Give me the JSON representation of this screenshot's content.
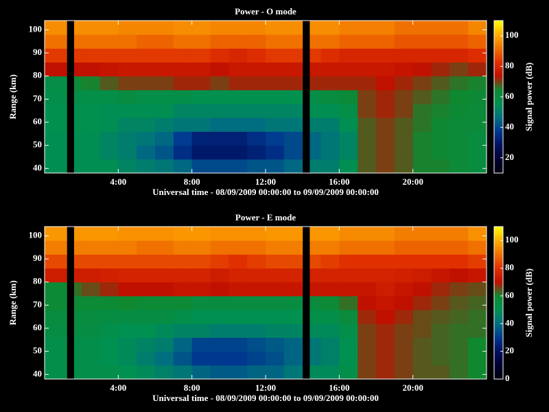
{
  "chart_data": [
    {
      "type": "heatmap",
      "title": "Power - O mode",
      "ylabel": "Range (km)",
      "xlabel": "Universal time - 08/09/2009 00:00:00 to 09/09/2009 00:00:00",
      "zlabel": "Signal power (dB)",
      "x_bins": [
        0,
        1.2,
        1.6,
        2,
        3,
        4,
        5,
        6,
        7,
        8,
        9,
        10,
        11,
        12,
        13,
        14,
        14.4,
        15,
        16,
        17,
        18,
        19,
        20,
        21,
        22,
        23,
        24
      ],
      "y_bins": [
        38,
        44,
        50,
        56,
        62,
        68,
        74,
        80,
        86,
        92,
        98,
        104
      ],
      "z": [
        [
          55,
          null,
          55,
          55,
          55,
          52,
          50,
          48,
          45,
          40,
          40,
          40,
          42,
          42,
          45,
          null,
          50,
          50,
          55,
          68,
          70,
          68,
          65,
          65,
          62,
          60
        ],
        [
          55,
          null,
          55,
          55,
          52,
          50,
          45,
          42,
          35,
          30,
          30,
          30,
          32,
          35,
          40,
          null,
          45,
          48,
          52,
          68,
          70,
          68,
          65,
          64,
          62,
          60
        ],
        [
          55,
          null,
          55,
          55,
          52,
          50,
          48,
          45,
          38,
          32,
          32,
          32,
          35,
          38,
          40,
          null,
          45,
          48,
          52,
          68,
          70,
          68,
          65,
          64,
          62,
          60
        ],
        [
          56,
          null,
          56,
          56,
          55,
          52,
          52,
          50,
          48,
          48,
          46,
          46,
          46,
          48,
          48,
          null,
          50,
          50,
          55,
          68,
          70,
          68,
          66,
          64,
          62,
          62
        ],
        [
          56,
          null,
          56,
          56,
          55,
          55,
          55,
          55,
          52,
          52,
          52,
          52,
          52,
          52,
          52,
          null,
          55,
          55,
          58,
          70,
          72,
          70,
          66,
          65,
          63,
          62
        ],
        [
          57,
          null,
          58,
          58,
          58,
          60,
          58,
          58,
          58,
          56,
          56,
          56,
          56,
          56,
          56,
          null,
          58,
          60,
          62,
          70,
          72,
          70,
          68,
          66,
          64,
          63
        ],
        [
          58,
          null,
          62,
          65,
          68,
          70,
          70,
          70,
          72,
          72,
          70,
          72,
          72,
          72,
          72,
          null,
          72,
          72,
          72,
          72,
          74,
          72,
          70,
          68,
          66,
          65
        ],
        [
          74,
          null,
          74,
          74,
          75,
          76,
          76,
          76,
          76,
          76,
          74,
          76,
          76,
          76,
          76,
          null,
          76,
          76,
          76,
          76,
          76,
          75,
          74,
          72,
          70,
          72
        ],
        [
          84,
          null,
          84,
          84,
          84,
          84,
          84,
          84,
          84,
          84,
          82,
          80,
          82,
          84,
          84,
          null,
          84,
          82,
          80,
          80,
          80,
          80,
          80,
          80,
          80,
          82
        ],
        [
          92,
          null,
          92,
          92,
          92,
          92,
          90,
          90,
          92,
          92,
          90,
          90,
          90,
          92,
          92,
          null,
          92,
          92,
          90,
          90,
          90,
          88,
          88,
          88,
          88,
          90
        ],
        [
          96,
          null,
          96,
          96,
          96,
          95,
          95,
          95,
          96,
          96,
          95,
          95,
          95,
          96,
          96,
          null,
          96,
          96,
          94,
          94,
          94,
          92,
          92,
          92,
          92,
          95
        ]
      ],
      "xlim": [
        0,
        24
      ],
      "ylim": [
        38,
        104
      ],
      "zlim": [
        10,
        110
      ],
      "xticks": [
        {
          "value": 4,
          "label": "4:00"
        },
        {
          "value": 8,
          "label": "8:00"
        },
        {
          "value": 12,
          "label": "12:00"
        },
        {
          "value": 16,
          "label": "16:00"
        },
        {
          "value": 20,
          "label": "20:00"
        }
      ],
      "yticks": [
        40,
        50,
        60,
        70,
        80,
        90,
        100
      ],
      "zticks": [
        20,
        40,
        60,
        80,
        100
      ],
      "colormap": [
        "#000010",
        "#000030",
        "#001060",
        "#003890",
        "#007080",
        "#009050",
        "#108830",
        "#c01000",
        "#e03000",
        "#f07000",
        "#ffb000",
        "#ffff00"
      ]
    },
    {
      "type": "heatmap",
      "title": "Power - E mode",
      "ylabel": "Range (km)",
      "xlabel": "Universal time - 08/09/2009 00:00:00 to 09/09/2009 00:00:00",
      "zlabel": "Signal power (dB)",
      "x_bins": [
        0,
        1.2,
        1.6,
        2,
        3,
        4,
        5,
        6,
        7,
        8,
        9,
        10,
        11,
        12,
        13,
        14,
        14.4,
        15,
        16,
        17,
        18,
        19,
        20,
        21,
        22,
        23,
        24
      ],
      "y_bins": [
        38,
        44,
        50,
        56,
        62,
        68,
        74,
        80,
        86,
        92,
        98,
        104
      ],
      "z": [
        [
          52,
          null,
          52,
          52,
          52,
          50,
          48,
          45,
          42,
          38,
          36,
          36,
          38,
          38,
          42,
          null,
          48,
          48,
          52,
          66,
          68,
          66,
          64,
          64,
          62,
          60
        ],
        [
          52,
          null,
          52,
          52,
          50,
          48,
          44,
          40,
          35,
          30,
          30,
          30,
          32,
          34,
          38,
          null,
          42,
          45,
          50,
          66,
          68,
          66,
          64,
          63,
          62,
          60
        ],
        [
          52,
          null,
          52,
          52,
          50,
          48,
          46,
          44,
          38,
          32,
          32,
          32,
          34,
          36,
          38,
          null,
          42,
          45,
          50,
          66,
          68,
          66,
          64,
          63,
          62,
          60
        ],
        [
          54,
          null,
          54,
          54,
          52,
          50,
          50,
          48,
          46,
          46,
          44,
          44,
          44,
          46,
          46,
          null,
          48,
          48,
          52,
          66,
          68,
          66,
          65,
          63,
          62,
          62
        ],
        [
          55,
          null,
          55,
          55,
          54,
          54,
          54,
          54,
          52,
          50,
          50,
          50,
          50,
          50,
          50,
          null,
          52,
          52,
          56,
          68,
          70,
          68,
          65,
          64,
          63,
          62
        ],
        [
          58,
          null,
          58,
          58,
          58,
          60,
          58,
          58,
          58,
          55,
          55,
          55,
          55,
          55,
          55,
          null,
          56,
          58,
          62,
          70,
          72,
          70,
          68,
          66,
          64,
          63
        ],
        [
          58,
          null,
          62,
          65,
          68,
          70,
          70,
          70,
          72,
          72,
          70,
          72,
          72,
          72,
          72,
          null,
          72,
          72,
          72,
          72,
          74,
          72,
          70,
          68,
          66,
          65
        ],
        [
          74,
          null,
          74,
          74,
          75,
          76,
          76,
          76,
          76,
          76,
          74,
          76,
          76,
          76,
          76,
          null,
          76,
          76,
          76,
          76,
          76,
          75,
          74,
          72,
          70,
          72
        ],
        [
          84,
          null,
          84,
          84,
          84,
          84,
          84,
          84,
          84,
          84,
          82,
          80,
          82,
          84,
          84,
          null,
          84,
          82,
          80,
          80,
          80,
          80,
          80,
          80,
          80,
          82
        ],
        [
          92,
          null,
          92,
          92,
          92,
          92,
          90,
          90,
          92,
          92,
          90,
          90,
          90,
          92,
          92,
          null,
          92,
          92,
          90,
          90,
          90,
          88,
          88,
          88,
          88,
          90
        ],
        [
          96,
          null,
          96,
          96,
          96,
          95,
          95,
          95,
          96,
          96,
          95,
          95,
          95,
          96,
          96,
          null,
          96,
          96,
          94,
          94,
          94,
          92,
          92,
          92,
          92,
          95
        ]
      ],
      "xlim": [
        0,
        24
      ],
      "ylim": [
        38,
        104
      ],
      "zlim": [
        0,
        110
      ],
      "xticks": [
        {
          "value": 4,
          "label": "4:00"
        },
        {
          "value": 8,
          "label": "8:00"
        },
        {
          "value": 12,
          "label": "12:00"
        },
        {
          "value": 16,
          "label": "16:00"
        },
        {
          "value": 20,
          "label": "20:00"
        }
      ],
      "yticks": [
        40,
        50,
        60,
        70,
        80,
        90,
        100
      ],
      "zticks": [
        0,
        20,
        40,
        60,
        80,
        100
      ],
      "colormap": [
        "#000010",
        "#000030",
        "#001060",
        "#003890",
        "#007080",
        "#009050",
        "#108830",
        "#c01000",
        "#e03000",
        "#f07000",
        "#ffb000",
        "#ffff00"
      ]
    }
  ]
}
